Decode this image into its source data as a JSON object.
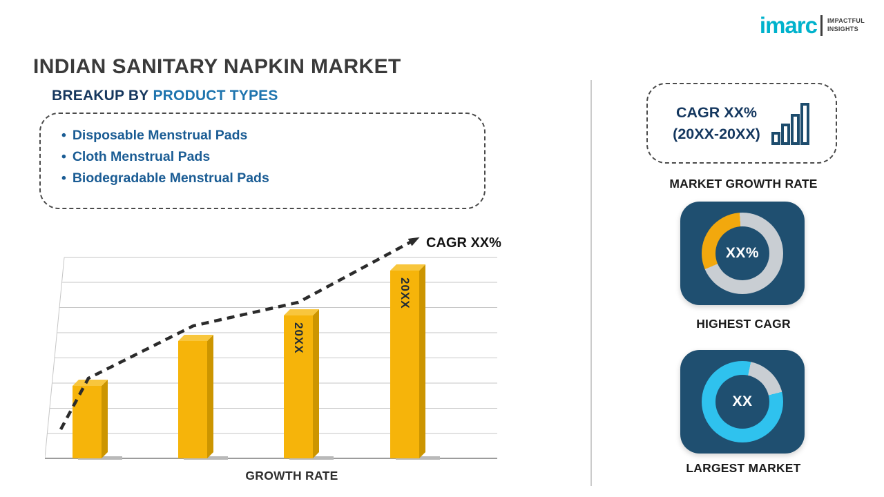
{
  "page": {
    "title": "INDIAN SANITARY NAPKIN MARKET"
  },
  "logo": {
    "brand": "imarc",
    "tagline_line1": "IMPACTFUL",
    "tagline_line2": "INSIGHTS",
    "brand_color": "#00b2cc"
  },
  "breakup": {
    "heading_prefix": "BREAKUP BY",
    "heading_highlight": "PRODUCT TYPES",
    "bullet": "•",
    "items": [
      "Disposable Menstrual Pads",
      "Cloth Menstrual Pads",
      "Biodegradable Menstrual Pads"
    ]
  },
  "chart_data": {
    "type": "bar",
    "categories": [
      "",
      "",
      "20XX",
      "20XX"
    ],
    "values": [
      31,
      50,
      61,
      80
    ],
    "values_unit": "relative-height-percent (axis unlabeled)",
    "bar_labels": [
      "",
      "",
      "20XX",
      "20XX"
    ],
    "xlabel": "GROWTH RATE",
    "ylabel": "",
    "trend_annotation": "CAGR XX%",
    "trend_style": "dashed-arrow-ascending",
    "bar_color": "#f6b40a",
    "grid": true,
    "ylim": [
      0,
      100
    ]
  },
  "right_panel": {
    "growth_box": {
      "line1": "CAGR XX%",
      "line2": "(20XX-20XX)"
    },
    "market_growth_label": "MARKET GROWTH RATE",
    "highest_cagr": {
      "value": "XX%",
      "label": "HIGHEST CAGR",
      "accent_color": "#f2a80d",
      "ring_base": "#c9ced3"
    },
    "largest_market": {
      "value": "XX",
      "label": "LARGEST MARKET",
      "accent_color": "#2fc2ee",
      "ring_base": "#c9ced3"
    },
    "card_bg": "#1f4f70"
  }
}
